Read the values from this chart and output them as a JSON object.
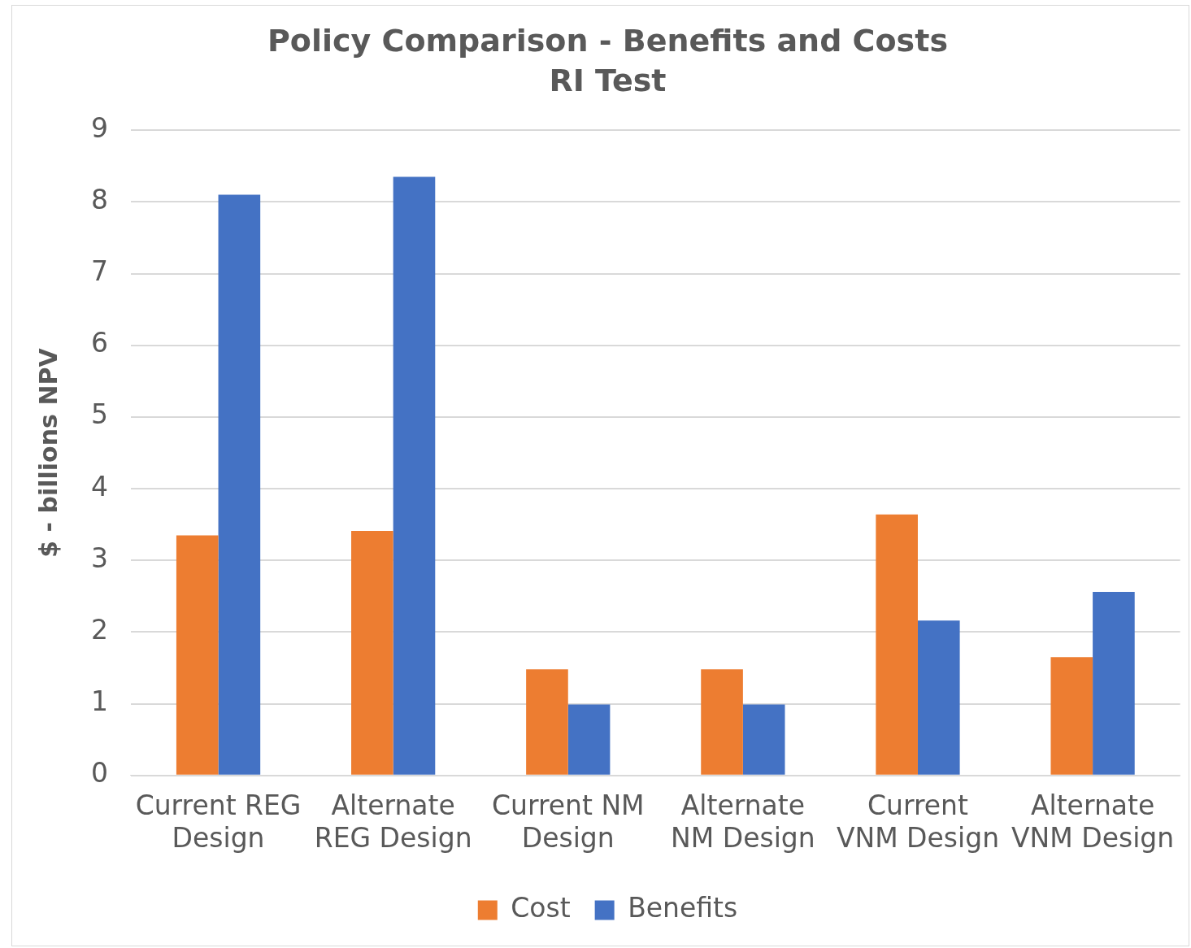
{
  "chart_data": {
    "type": "bar",
    "title": "Policy Comparison - Benefits and Costs",
    "subtitle": "RI Test",
    "ylabel": "$ - billions NPV",
    "categories": [
      "Current REG Design",
      "Alternate REG Design",
      "Current NM Design",
      "Alternate NM Design",
      "Current VNM Design",
      "Alternate VNM Design"
    ],
    "series": [
      {
        "name": "Cost",
        "color": "#ed7d31",
        "values": [
          3.35,
          3.41,
          1.48,
          1.48,
          3.64,
          1.65
        ]
      },
      {
        "name": "Benefits",
        "color": "#4472c4",
        "values": [
          8.1,
          8.35,
          0.99,
          0.99,
          2.16,
          2.56
        ]
      }
    ],
    "ylim": [
      0,
      9
    ],
    "yticks": [
      0,
      1,
      2,
      3,
      4,
      5,
      6,
      7,
      8,
      9
    ],
    "grid": "y",
    "legend": "bottom"
  }
}
